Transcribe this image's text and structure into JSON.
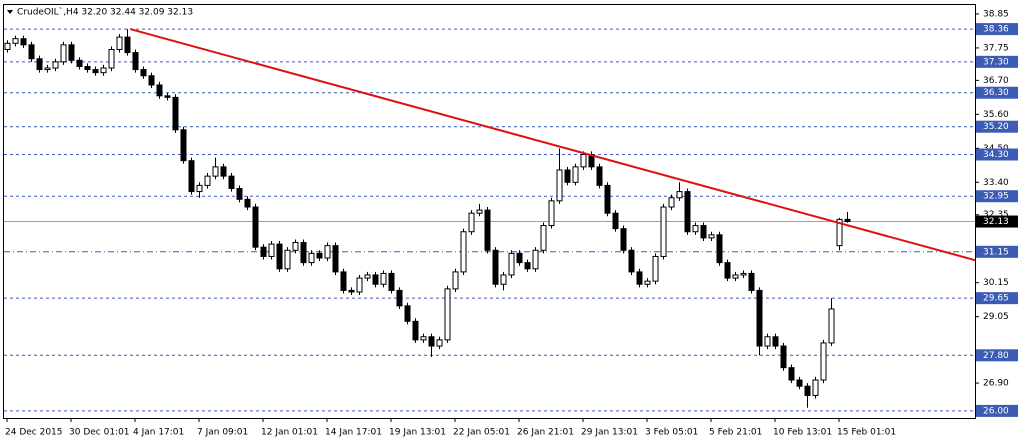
{
  "chart_data": {
    "type": "candlestick",
    "title": "CrudeOIL`,H4  32.20 32.44 32.09 32.13",
    "categories": [
      "24 Dec 2015",
      null,
      null,
      null,
      null,
      null,
      null,
      null,
      "30 Dec 01:01",
      null,
      null,
      null,
      null,
      null,
      null,
      null,
      "4 Jan 17:01",
      null,
      null,
      null,
      null,
      null,
      null,
      null,
      "7 Jan 09:01",
      null,
      null,
      null,
      null,
      null,
      null,
      null,
      "12 Jan 01:01",
      null,
      null,
      null,
      null,
      null,
      null,
      null,
      "14 Jan 17:01",
      null,
      null,
      null,
      null,
      null,
      null,
      null,
      "19 Jan 13:01",
      null,
      null,
      null,
      null,
      null,
      null,
      null,
      "22 Jan 05:01",
      null,
      null,
      null,
      null,
      null,
      null,
      null,
      "26 Jan 21:01",
      null,
      null,
      null,
      null,
      null,
      null,
      null,
      "29 Jan 13:01",
      null,
      null,
      null,
      null,
      null,
      null,
      null,
      "3 Feb 05:01",
      null,
      null,
      null,
      null,
      null,
      null,
      null,
      "5 Feb 21:01",
      null,
      null,
      null,
      null,
      null,
      null,
      null,
      "10 Feb 13:01",
      null,
      null,
      null,
      null,
      null,
      null,
      null,
      "15 Feb 01:01",
      null
    ],
    "ohlc": [
      [
        37.7,
        38.0,
        37.6,
        37.9
      ],
      [
        37.9,
        38.15,
        37.8,
        38.05
      ],
      [
        38.05,
        38.15,
        37.75,
        37.85
      ],
      [
        37.85,
        37.95,
        37.3,
        37.4
      ],
      [
        37.4,
        37.5,
        36.95,
        37.05
      ],
      [
        37.05,
        37.2,
        36.95,
        37.1
      ],
      [
        37.1,
        37.4,
        37.0,
        37.3
      ],
      [
        37.3,
        37.95,
        37.2,
        37.85
      ],
      [
        37.85,
        37.95,
        37.25,
        37.35
      ],
      [
        37.35,
        37.45,
        37.05,
        37.15
      ],
      [
        37.15,
        37.25,
        36.95,
        37.05
      ],
      [
        37.05,
        37.15,
        36.85,
        36.95
      ],
      [
        36.95,
        37.2,
        36.85,
        37.1
      ],
      [
        37.1,
        37.8,
        37.0,
        37.7
      ],
      [
        37.7,
        38.2,
        37.6,
        38.1
      ],
      [
        38.1,
        38.36,
        37.5,
        37.6
      ],
      [
        37.6,
        37.7,
        36.95,
        37.05
      ],
      [
        37.05,
        37.15,
        36.75,
        36.85
      ],
      [
        36.85,
        36.95,
        36.45,
        36.55
      ],
      [
        36.55,
        36.65,
        36.1,
        36.2
      ],
      [
        36.2,
        36.3,
        36.05,
        36.15
      ],
      [
        36.15,
        36.25,
        35.0,
        35.1
      ],
      [
        35.1,
        35.2,
        34.0,
        34.1
      ],
      [
        34.1,
        34.2,
        33.0,
        33.1
      ],
      [
        33.1,
        33.4,
        32.9,
        33.3
      ],
      [
        33.3,
        33.7,
        33.2,
        33.6
      ],
      [
        33.6,
        34.2,
        33.5,
        33.9
      ],
      [
        33.9,
        34.0,
        33.5,
        33.6
      ],
      [
        33.6,
        33.7,
        33.1,
        33.2
      ],
      [
        33.2,
        33.3,
        32.75,
        32.85
      ],
      [
        32.85,
        32.95,
        32.5,
        32.6
      ],
      [
        32.6,
        32.7,
        31.2,
        31.3
      ],
      [
        31.3,
        31.4,
        30.9,
        31.0
      ],
      [
        31.0,
        31.5,
        30.9,
        31.4
      ],
      [
        31.4,
        31.5,
        30.5,
        30.6
      ],
      [
        30.6,
        31.3,
        30.5,
        31.2
      ],
      [
        31.2,
        31.55,
        31.1,
        31.45
      ],
      [
        31.45,
        31.55,
        30.7,
        30.8
      ],
      [
        30.8,
        31.2,
        30.7,
        31.1
      ],
      [
        31.1,
        31.2,
        30.85,
        30.95
      ],
      [
        30.95,
        31.45,
        30.85,
        31.35
      ],
      [
        31.35,
        31.45,
        30.4,
        30.5
      ],
      [
        30.5,
        30.6,
        29.8,
        29.9
      ],
      [
        29.9,
        30.0,
        29.75,
        29.85
      ],
      [
        29.85,
        30.4,
        29.75,
        30.3
      ],
      [
        30.3,
        30.5,
        30.2,
        30.4
      ],
      [
        30.4,
        30.5,
        30.0,
        30.1
      ],
      [
        30.1,
        30.55,
        30.0,
        30.45
      ],
      [
        30.45,
        30.55,
        29.8,
        29.9
      ],
      [
        29.9,
        30.0,
        29.3,
        29.4
      ],
      [
        29.4,
        29.5,
        28.8,
        28.9
      ],
      [
        28.9,
        29.0,
        28.2,
        28.3
      ],
      [
        28.3,
        28.5,
        28.2,
        28.4
      ],
      [
        28.4,
        28.5,
        27.75,
        28.1
      ],
      [
        28.1,
        28.4,
        28.0,
        28.3
      ],
      [
        28.3,
        30.05,
        28.2,
        29.95
      ],
      [
        29.95,
        30.6,
        29.85,
        30.5
      ],
      [
        30.5,
        31.9,
        30.4,
        31.8
      ],
      [
        31.8,
        32.5,
        31.7,
        32.4
      ],
      [
        32.4,
        32.7,
        32.3,
        32.5
      ],
      [
        32.5,
        32.6,
        31.1,
        31.2
      ],
      [
        31.2,
        31.3,
        30.0,
        30.1
      ],
      [
        30.1,
        30.5,
        29.9,
        30.4
      ],
      [
        30.4,
        31.2,
        30.3,
        31.1
      ],
      [
        31.1,
        31.2,
        30.7,
        30.8
      ],
      [
        30.8,
        30.9,
        30.5,
        30.6
      ],
      [
        30.6,
        31.3,
        30.5,
        31.2
      ],
      [
        31.2,
        32.1,
        31.1,
        32.0
      ],
      [
        32.0,
        32.9,
        31.9,
        32.8
      ],
      [
        32.8,
        34.5,
        32.7,
        33.8
      ],
      [
        33.8,
        33.9,
        33.3,
        33.4
      ],
      [
        33.4,
        34.0,
        33.3,
        33.9
      ],
      [
        33.9,
        34.4,
        33.8,
        34.3
      ],
      [
        34.3,
        34.4,
        33.8,
        33.9
      ],
      [
        33.9,
        34.0,
        33.2,
        33.3
      ],
      [
        33.3,
        33.4,
        32.3,
        32.4
      ],
      [
        32.4,
        32.5,
        31.8,
        31.9
      ],
      [
        31.9,
        32.0,
        31.1,
        31.2
      ],
      [
        31.2,
        31.3,
        30.4,
        30.5
      ],
      [
        30.5,
        30.6,
        30.0,
        30.1
      ],
      [
        30.1,
        30.3,
        30.0,
        30.2
      ],
      [
        30.2,
        31.1,
        30.1,
        31.0
      ],
      [
        31.0,
        32.7,
        30.9,
        32.6
      ],
      [
        32.6,
        33.0,
        32.5,
        32.9
      ],
      [
        32.9,
        33.4,
        32.8,
        33.1
      ],
      [
        33.1,
        33.2,
        31.7,
        31.8
      ],
      [
        31.8,
        32.1,
        31.7,
        32.0
      ],
      [
        32.0,
        32.1,
        31.5,
        31.6
      ],
      [
        31.6,
        31.8,
        31.5,
        31.7
      ],
      [
        31.7,
        31.8,
        30.7,
        30.8
      ],
      [
        30.8,
        30.9,
        30.2,
        30.3
      ],
      [
        30.3,
        30.5,
        30.2,
        30.4
      ],
      [
        30.4,
        30.55,
        30.3,
        30.45
      ],
      [
        30.45,
        30.55,
        29.8,
        29.9
      ],
      [
        29.9,
        30.0,
        27.8,
        28.1
      ],
      [
        28.1,
        28.5,
        28.0,
        28.4
      ],
      [
        28.4,
        28.5,
        28.0,
        28.1
      ],
      [
        28.1,
        28.2,
        27.3,
        27.4
      ],
      [
        27.4,
        27.5,
        26.9,
        27.0
      ],
      [
        27.0,
        27.1,
        26.7,
        26.8
      ],
      [
        26.8,
        26.9,
        26.1,
        26.5
      ],
      [
        26.5,
        27.1,
        26.4,
        27.0
      ],
      [
        27.0,
        28.3,
        26.9,
        28.2
      ],
      [
        28.2,
        29.65,
        28.1,
        29.3
      ],
      [
        31.35,
        32.25,
        31.2,
        32.2
      ],
      [
        32.2,
        32.44,
        32.09,
        32.13
      ]
    ],
    "ylim": [
      25.77,
      39.14
    ],
    "yticks": [
      38.85,
      37.75,
      {
        "value": 36.7,
        "label": "36.70"
      },
      {
        "value": 35.6,
        "label": "35.60"
      },
      {
        "value": 34.5,
        "label": "34.50"
      },
      {
        "value": 33.4,
        "label": "33.40"
      },
      32.35,
      {
        "value": 30.15,
        "label": "30.15"
      },
      29.05,
      {
        "value": 26.9,
        "label": "26.90"
      }
    ],
    "levels": [
      {
        "value": 38.36,
        "label": "38.36",
        "style": "dash"
      },
      {
        "value": 37.3,
        "label": "37.30",
        "style": "dash"
      },
      {
        "value": 36.3,
        "label": "36.30",
        "style": "dash"
      },
      {
        "value": 35.2,
        "label": "35.20",
        "style": "dash"
      },
      {
        "value": 34.3,
        "label": "34.30",
        "style": "dash"
      },
      {
        "value": 32.95,
        "label": "32.95",
        "style": "dash"
      },
      {
        "value": 31.15,
        "label": "31.15",
        "style": "dashdot"
      },
      {
        "value": 29.65,
        "label": "29.65",
        "style": "dash"
      },
      {
        "value": 27.8,
        "label": "27.80",
        "style": "dash"
      },
      {
        "value": 26.0,
        "label": "26.00",
        "style": "dash"
      }
    ],
    "level_color": "#3b5bb5",
    "current": {
      "value": 32.13,
      "label": "32.13"
    },
    "trendline": {
      "x": [
        15.4,
        121
      ],
      "values": [
        38.36,
        30.88
      ],
      "color": "#e01010"
    },
    "up_color": "#ffffff",
    "down_color": "#000000"
  }
}
